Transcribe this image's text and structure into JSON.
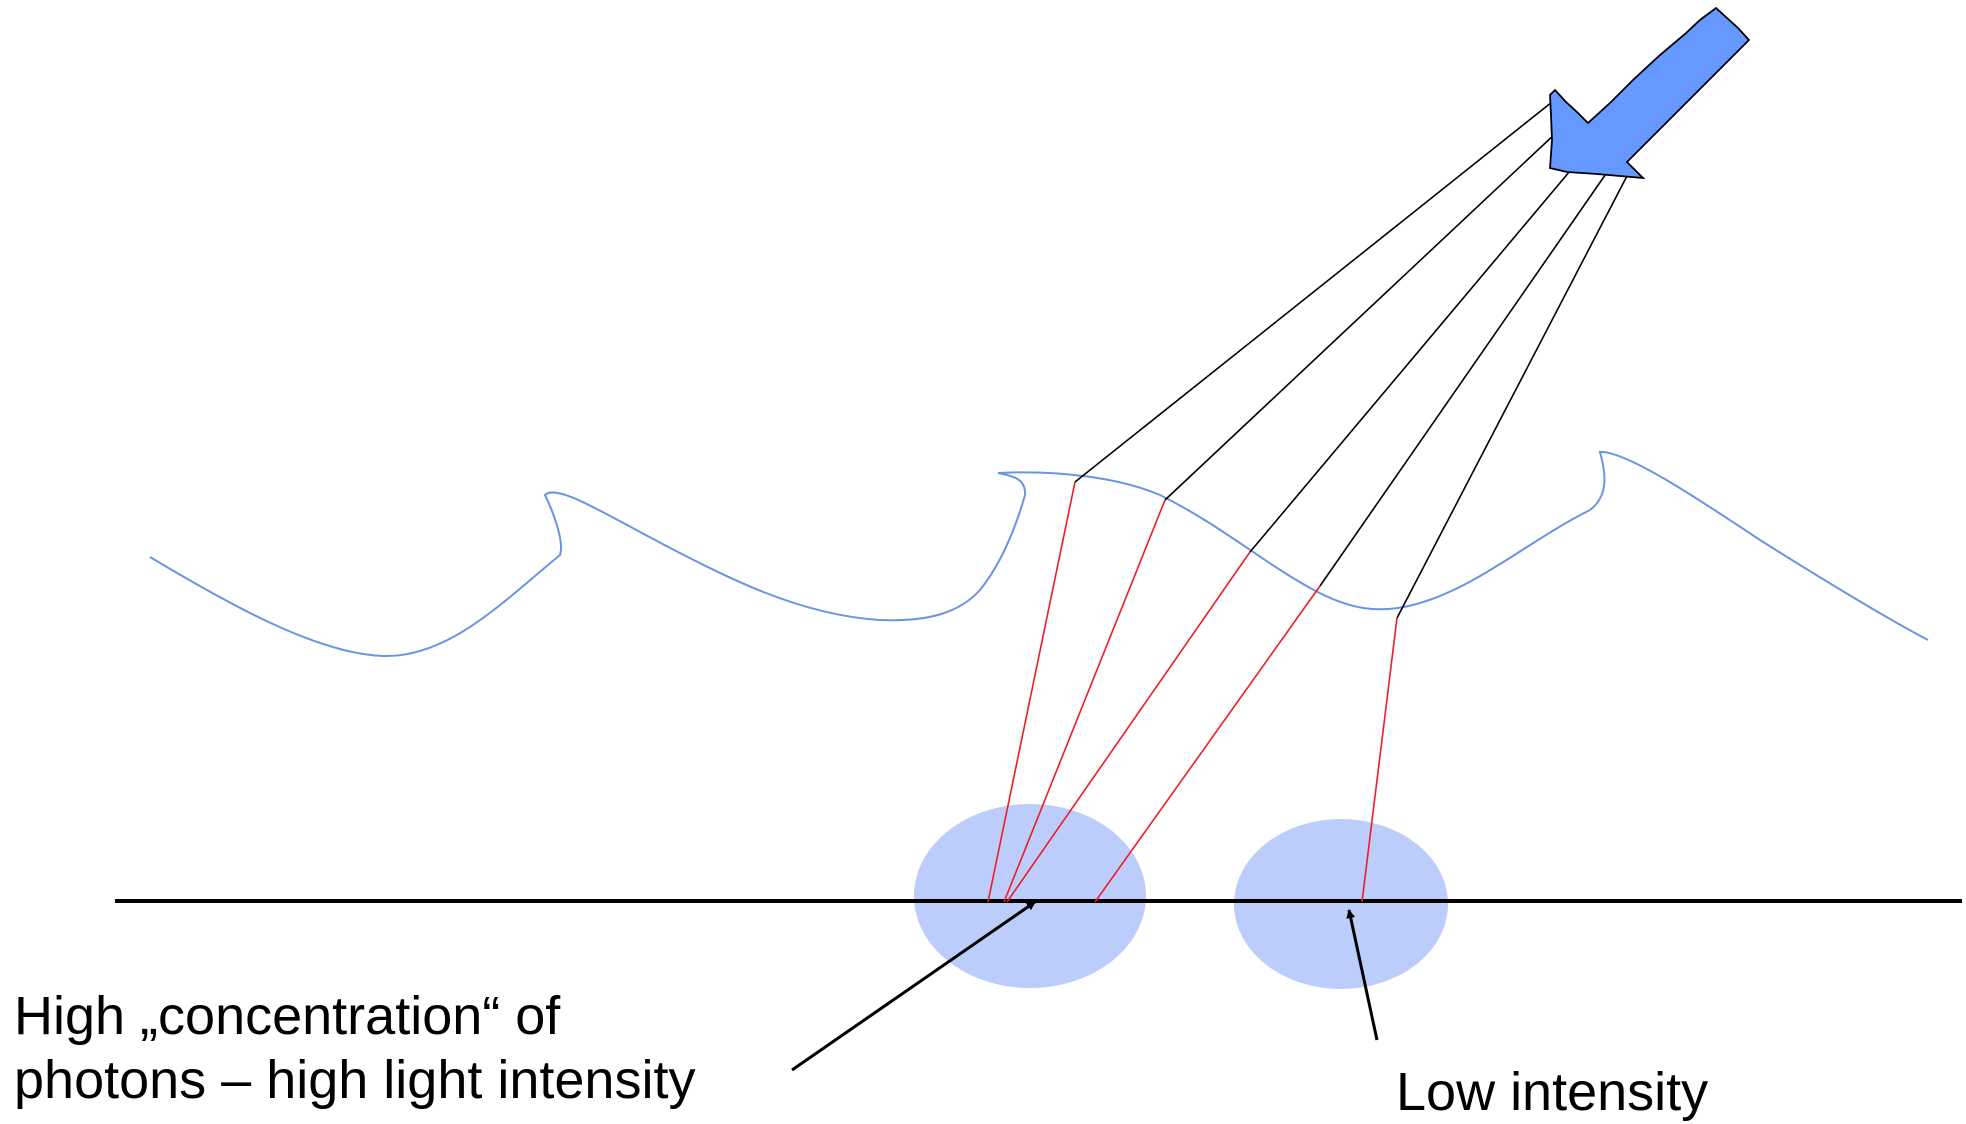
{
  "labels": {
    "high_line1": "High „concentration“ of",
    "high_line2": "photons – high light intensity",
    "low": "Low intensity"
  },
  "colors": {
    "water_surface": "#6a95e0",
    "light_arrow_fill": "#6699ff",
    "incident_ray": "#000000",
    "refracted_ray": "#ee1c24",
    "spot": "#bccdfb",
    "floor": "#000000"
  },
  "icons": {
    "light_source": "arrow-down-left-icon",
    "pointer": "arrow-icon"
  }
}
